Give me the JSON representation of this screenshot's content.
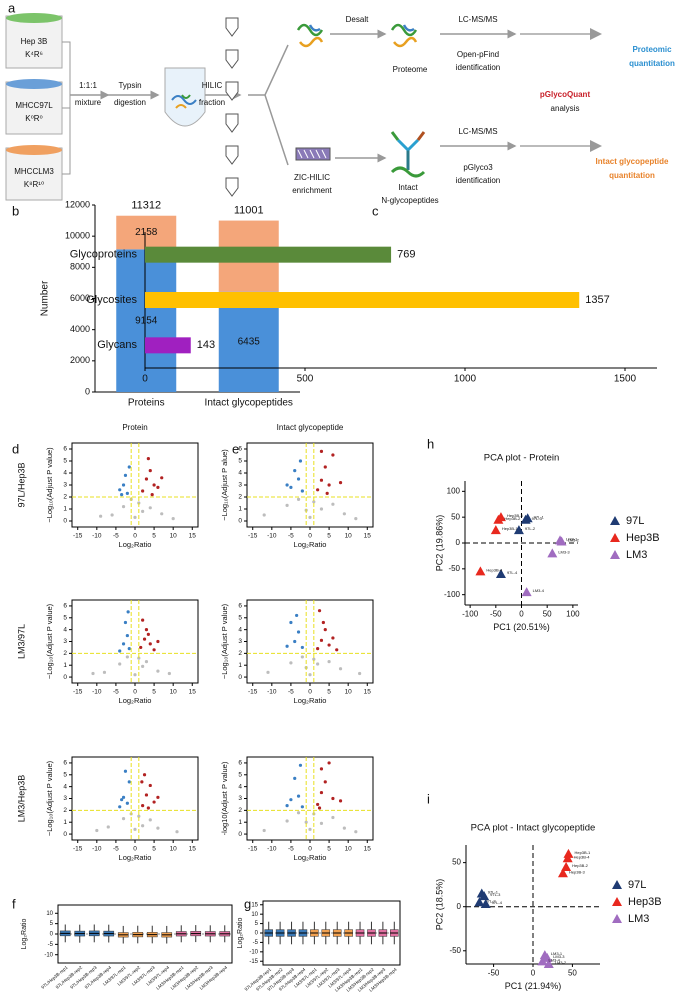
{
  "workflow": {
    "panel": "a",
    "samples": [
      {
        "name": "Hep 3B",
        "label": "K⁴R⁶"
      },
      {
        "name": "MHCC97L",
        "label": "K⁰R⁰"
      },
      {
        "name": "MHCCLM3",
        "label": "K⁸R¹⁰"
      }
    ],
    "steps": {
      "mix1": "1:1:1",
      "mix2": "mixture",
      "digest1": "Typsin",
      "digest2": "digestion",
      "hilic1": "HILIC",
      "hilic2": "fraction",
      "desalt": "Desalt",
      "proteome": "Proteome",
      "lcms1": "LC-MS/MS",
      "openpfind1": "Open-pFind",
      "openpfind2": "identification",
      "proteomic1": "Proteomic",
      "proteomic2": "quantitation",
      "pglycoquant": "pGlycoQuant",
      "analysis": "analysis",
      "zic1": "ZIC-HILIC",
      "zic2": "enrichment",
      "intact1": "Intact",
      "intact2": "N-glycopeptides",
      "lcms2": "LC-MS/MS",
      "pglyco3_1": "pGlyco3",
      "pglyco3_2": "identification",
      "igq1": "Intact glycopeptide",
      "igq2": "quantitation"
    }
  },
  "chart_data": [
    {
      "type": "stacked_bar",
      "panel": "b",
      "ylabel": "Number",
      "categories": [
        "Proteins",
        "Intact glycopeptides"
      ],
      "series": [
        {
          "color": "#4a90d9",
          "values": [
            9154,
            6435
          ]
        },
        {
          "color": "#f4a67a",
          "values": [
            2158,
            4566
          ]
        }
      ],
      "total_labels": [
        11312,
        11001
      ],
      "ylim": [
        0,
        12000
      ],
      "yticks": [
        0,
        2000,
        4000,
        6000,
        8000,
        10000,
        12000
      ]
    },
    {
      "type": "hbar",
      "panel": "c",
      "categories": [
        "Glycoproteins",
        "Glycosites",
        "Glycans"
      ],
      "values": [
        769,
        1357,
        143
      ],
      "colors": [
        "#5a8a3a",
        "#ffc000",
        "#a020c0"
      ],
      "xlim": [
        0,
        1600
      ],
      "xticks": [
        0,
        500,
        1000,
        1500
      ]
    },
    {
      "type": "scatter",
      "panel": "d",
      "title": "Protein",
      "row_label": "97L/Hep3B",
      "ylabel": "−Log₁₀(Adjust P value)",
      "xlabel": "Log₂Ratio",
      "frame": true,
      "thresholds": {
        "x": [
          -1,
          1
        ],
        "y": 2
      },
      "xlim": [
        -16.5,
        16.5
      ],
      "ylim": [
        -0.5,
        6.5
      ],
      "xticks": [
        -15,
        -10,
        -5,
        0,
        5,
        10,
        15
      ],
      "yticks": [
        0,
        1,
        2,
        3,
        4,
        5,
        6
      ],
      "series": [
        {
          "color": "#bdbdbd",
          "x": [
            -6,
            -3,
            -1,
            0,
            1,
            2,
            4,
            7,
            -9,
            10
          ],
          "y": [
            0.5,
            1.2,
            1.8,
            0.3,
            1.5,
            0.8,
            1.1,
            0.6,
            0.4,
            0.2
          ]
        },
        {
          "color": "#3a7fc4",
          "x": [
            -2,
            -3,
            -1.5,
            -4,
            -2.5,
            -3.5
          ],
          "y": [
            2.3,
            3,
            4.5,
            2.6,
            3.8,
            2.2
          ]
        },
        {
          "color": "#b22222",
          "x": [
            2,
            3,
            4,
            5,
            6,
            3.5,
            7,
            4.5
          ],
          "y": [
            2.5,
            3.5,
            4.2,
            3,
            2.8,
            5.2,
            3.6,
            2.2
          ]
        }
      ]
    },
    {
      "type": "scatter",
      "row_label": "LM3/97L",
      "ylabel": "−Log₁₀(Adjust P value)",
      "xlabel": "Log₂Ratio",
      "frame": true,
      "thresholds": {
        "x": [
          -1,
          1
        ],
        "y": 2
      },
      "xlim": [
        -16.5,
        16.5
      ],
      "ylim": [
        -0.5,
        6.5
      ],
      "xticks": [
        -15,
        -10,
        -5,
        0,
        5,
        10,
        15
      ],
      "yticks": [
        0,
        1,
        2,
        3,
        4,
        5,
        6
      ],
      "series": [
        {
          "color": "#bdbdbd",
          "x": [
            -8,
            -4,
            -2,
            0,
            1,
            2,
            3,
            6,
            -11,
            9
          ],
          "y": [
            0.4,
            1.1,
            1.7,
            0.2,
            1.6,
            0.9,
            1.3,
            0.5,
            0.3,
            0.3
          ]
        },
        {
          "color": "#3a7fc4",
          "x": [
            -1.5,
            -2,
            -3,
            -4,
            -2.5,
            -1.8
          ],
          "y": [
            2.4,
            3.5,
            2.8,
            2.2,
            4.6,
            5.5
          ]
        },
        {
          "color": "#b22222",
          "x": [
            1.5,
            2.5,
            3,
            4,
            5,
            2,
            6,
            3.5
          ],
          "y": [
            2.5,
            3.2,
            4,
            2.8,
            2.3,
            4.8,
            3,
            3.6
          ]
        }
      ]
    },
    {
      "type": "scatter",
      "row_label": "LM3/Hep3B",
      "ylabel": "−Log₁₀(Adjust P value)",
      "xlabel": "Log₂Ratio",
      "frame": true,
      "thresholds": {
        "x": [
          -1,
          1
        ],
        "y": 2
      },
      "xlim": [
        -16.5,
        16.5
      ],
      "ylim": [
        -0.5,
        6.5
      ],
      "xticks": [
        -15,
        -10,
        -5,
        0,
        5,
        10,
        15
      ],
      "yticks": [
        0,
        1,
        2,
        3,
        4,
        5,
        6
      ],
      "series": [
        {
          "color": "#bdbdbd",
          "x": [
            -7,
            -3,
            -1,
            0,
            1,
            2,
            4,
            6,
            -10,
            11
          ],
          "y": [
            0.6,
            1.3,
            1.7,
            0.4,
            1.5,
            0.7,
            1.2,
            0.5,
            0.3,
            0.2
          ]
        },
        {
          "color": "#3a7fc4",
          "x": [
            -2,
            -3,
            -1.5,
            -2.5,
            -4,
            -3.5
          ],
          "y": [
            2.6,
            3.1,
            4.4,
            5.3,
            2.3,
            2.9
          ]
        },
        {
          "color": "#b22222",
          "x": [
            2,
            3,
            4,
            2.5,
            5,
            3.5,
            6,
            1.8
          ],
          "y": [
            2.4,
            3.3,
            4.1,
            5,
            2.7,
            2.2,
            3.1,
            4.4
          ]
        }
      ]
    },
    {
      "type": "scatter",
      "panel": "e",
      "title": "Intact glycopeptide",
      "ylabel": "−Log₁₀(Adjust P alue)",
      "xlabel": "Log₂Ratio",
      "frame": true,
      "thresholds": {
        "x": [
          -1,
          1
        ],
        "y": 2
      },
      "xlim": [
        -16.5,
        16.5
      ],
      "ylim": [
        -0.5,
        6.5
      ],
      "xticks": [
        -15,
        -10,
        -5,
        0,
        5,
        10,
        15
      ],
      "yticks": [
        0,
        1,
        2,
        3,
        4,
        5,
        6
      ],
      "series": [
        {
          "color": "#bdbdbd",
          "x": [
            -12,
            -6,
            -3,
            -1,
            0,
            1,
            3,
            6,
            9,
            12
          ],
          "y": [
            0.5,
            1.3,
            1.8,
            0.9,
            0.3,
            1.6,
            1,
            1.4,
            0.6,
            0.2
          ]
        },
        {
          "color": "#3a7fc4",
          "x": [
            -2,
            -3,
            -4,
            -5,
            -2.5,
            -6
          ],
          "y": [
            2.5,
            3.5,
            4.2,
            2.8,
            5,
            3
          ]
        },
        {
          "color": "#b22222",
          "x": [
            2,
            3,
            4,
            5,
            6,
            8,
            3,
            4.5
          ],
          "y": [
            2.6,
            3.4,
            4.5,
            3,
            5.5,
            3.2,
            5.8,
            2.3
          ]
        }
      ]
    },
    {
      "type": "scatter",
      "ylabel": "−Log₁₀(Adjust P value)",
      "xlabel": "Log₂Ratio",
      "frame": true,
      "thresholds": {
        "x": [
          -1,
          1
        ],
        "y": 2
      },
      "xlim": [
        -16.5,
        16.5
      ],
      "ylim": [
        -0.5,
        6.5
      ],
      "xticks": [
        -15,
        -10,
        -5,
        0,
        5,
        10,
        15
      ],
      "yticks": [
        0,
        1,
        2,
        3,
        4,
        5,
        6
      ],
      "series": [
        {
          "color": "#bdbdbd",
          "x": [
            -11,
            -5,
            -2,
            -1,
            0,
            1,
            2,
            5,
            8,
            13
          ],
          "y": [
            0.4,
            1.2,
            1.7,
            0.8,
            0.2,
            1.5,
            1.1,
            1.3,
            0.7,
            0.3
          ]
        },
        {
          "color": "#3a7fc4",
          "x": [
            -2,
            -3,
            -4,
            -5,
            -6,
            -3.5
          ],
          "y": [
            2.5,
            3.8,
            3,
            4.6,
            2.6,
            5.2
          ]
        },
        {
          "color": "#b22222",
          "x": [
            2,
            3,
            4,
            5,
            2.5,
            6,
            3.5,
            7
          ],
          "y": [
            2.4,
            3.1,
            4,
            2.7,
            5.6,
            3.3,
            4.6,
            2.3
          ]
        }
      ]
    },
    {
      "type": "scatter",
      "ylabel": "-log10(Adjust P value)",
      "xlabel": "Log₂Ratio",
      "frame": true,
      "thresholds": {
        "x": [
          -1,
          1
        ],
        "y": 2
      },
      "xlim": [
        -16.5,
        16.5
      ],
      "ylim": [
        -0.5,
        6.5
      ],
      "xticks": [
        -15,
        -10,
        -5,
        0,
        5,
        10,
        15
      ],
      "yticks": [
        0,
        1,
        2,
        3,
        4,
        5,
        6
      ],
      "series": [
        {
          "color": "#bdbdbd",
          "x": [
            -12,
            -6,
            -3,
            -1,
            0,
            1,
            3,
            6,
            9,
            12
          ],
          "y": [
            0.3,
            1.1,
            1.8,
            1,
            0.4,
            1.7,
            0.9,
            1.4,
            0.5,
            0.2
          ]
        },
        {
          "color": "#3a7fc4",
          "x": [
            -2,
            -3,
            -4,
            -5,
            -2.5,
            -6
          ],
          "y": [
            2.3,
            3.2,
            4.7,
            2.9,
            5.8,
            2.4
          ]
        },
        {
          "color": "#b22222",
          "x": [
            2,
            3,
            4,
            6,
            3,
            5,
            8,
            2.5
          ],
          "y": [
            2.5,
            3.5,
            4.4,
            3,
            5.5,
            6,
            2.8,
            2.2
          ]
        }
      ]
    },
    {
      "type": "box",
      "panel": "f",
      "ylabel": "Log₂Ratio",
      "ylim": [
        -14,
        14
      ],
      "yticks": [
        -10,
        -5,
        0,
        5,
        10
      ],
      "categories": [
        "97L/Hep3B-rep1",
        "97L/Hep3B-rep2",
        "97L/Hep3B-rep3",
        "97L/Hep3B-rep4",
        "LM3/97L-rep1",
        "LM3/97L-rep2",
        "LM3/97L-rep3",
        "LM3/97L-rep4",
        "LM3/Hep3B-rep1",
        "LM3/Hep3B-rep2",
        "LM3/Hep3B-rep3",
        "LM3/Hep3B-rep4"
      ],
      "colors": [
        "#3a78b5",
        "#3a78b5",
        "#3a78b5",
        "#3a78b5",
        "#f0a050",
        "#f0a050",
        "#f0a050",
        "#f0a050",
        "#e070a0",
        "#e070a0",
        "#e070a0",
        "#e070a0"
      ],
      "whisker_low": [
        -4,
        -4.2,
        -4,
        -4.1,
        -4.6,
        -4.5,
        -4.5,
        -4.6,
        -4,
        -3.9,
        -4,
        -4
      ],
      "q1": [
        -0.9,
        -1,
        -0.9,
        -1,
        -1.5,
        -1.4,
        -1.4,
        -1.5,
        -1,
        -0.9,
        -1,
        -1
      ],
      "median": [
        0.3,
        0.2,
        0.3,
        0.2,
        -0.4,
        -0.3,
        -0.3,
        -0.4,
        0.1,
        0.2,
        0.1,
        0.1
      ],
      "q3": [
        1.5,
        1.4,
        1.5,
        1.4,
        0.7,
        0.8,
        0.8,
        0.7,
        1.2,
        1.3,
        1.2,
        1.2
      ],
      "whisker_high": [
        4.6,
        4.5,
        4.6,
        4.5,
        3.9,
        4,
        4,
        3.9,
        4.2,
        4.3,
        4.2,
        4.2
      ]
    },
    {
      "type": "box",
      "panel": "g",
      "ylabel": "Log₂Ratio",
      "ylim": [
        -17,
        17
      ],
      "yticks": [
        -15,
        -10,
        -5,
        0,
        5,
        10,
        15
      ],
      "categories": [
        "97L/Hep3B-rep1",
        "97L/Hep3B-rep2",
        "97L/Hep3B-rep3",
        "97L/Hep3B-rep4",
        "LM3/97L-rep1",
        "LM3/97L-rep2",
        "LM3/97L-rep3",
        "LM3/97L-rep4",
        "LM3/Hep3B-rep1",
        "LM3/Hep3B-rep2",
        "LM3/Hep3B-rep3",
        "LM3/Hep3B-rep4"
      ],
      "colors": [
        "#3a78b5",
        "#3a78b5",
        "#3a78b5",
        "#3a78b5",
        "#f0a050",
        "#f0a050",
        "#f0a050",
        "#f0a050",
        "#e070a0",
        "#e070a0",
        "#e070a0",
        "#e070a0"
      ],
      "whisker_low": [
        -6,
        -6,
        -6,
        -6,
        -6,
        -6,
        -6,
        -6,
        -6,
        -6,
        -6,
        -6
      ],
      "q1": [
        -1.8,
        -1.8,
        -1.8,
        -1.8,
        -1.8,
        -1.8,
        -1.8,
        -1.8,
        -1.8,
        -1.8,
        -1.8,
        -1.8
      ],
      "median": [
        0,
        0,
        0,
        0,
        0,
        0,
        0,
        0,
        0,
        0,
        0,
        0
      ],
      "q3": [
        1.8,
        1.8,
        1.8,
        1.8,
        1.8,
        1.8,
        1.8,
        1.8,
        1.8,
        1.8,
        1.8,
        1.8
      ],
      "whisker_high": [
        6,
        6,
        6,
        6,
        6,
        6,
        6,
        6,
        6,
        6,
        6,
        6
      ]
    },
    {
      "type": "scatter",
      "panel": "h",
      "title": "PCA plot - Protein",
      "xlabel": "PC1 (20.51%)",
      "ylabel": "PC2 (19.86%)",
      "zero_lines": true,
      "legend": "right",
      "xlim": [
        -110,
        110
      ],
      "ylim": [
        -120,
        120
      ],
      "xticks": [
        -100,
        -50,
        0,
        50,
        100
      ],
      "yticks": [
        -100,
        -50,
        0,
        50,
        100
      ],
      "series": [
        {
          "name": "97L",
          "color": "#1f3b73",
          "x": [
            8,
            12,
            -5,
            -40
          ],
          "y": [
            45,
            48,
            25,
            -60
          ],
          "labels": [
            "97L-3",
            "97L-1",
            "97L-2",
            "97L-4"
          ]
        },
        {
          "name": "Hep3B",
          "color": "#e8281e",
          "x": [
            -40,
            -45,
            -50,
            -80
          ],
          "y": [
            50,
            45,
            25,
            -55
          ],
          "labels": [
            "Hep3B-3",
            "Hep3B-2",
            "Hep3B-1",
            "Hep3B-4"
          ]
        },
        {
          "name": "LM3",
          "color": "#a06cc0",
          "x": [
            75,
            78,
            60,
            10
          ],
          "y": [
            5,
            3,
            -20,
            -95
          ],
          "labels": [
            "LM3-1",
            "LM3-2",
            "LM3-3",
            "LM3-4"
          ]
        }
      ]
    },
    {
      "type": "scatter",
      "panel": "i",
      "title": "PCA plot - Intact glycopeptide",
      "xlabel": "PC1 (21.94%)",
      "ylabel": "PC2 (18.5%)",
      "zero_lines": true,
      "legend": "right",
      "xlim": [
        -85,
        85
      ],
      "ylim": [
        -65,
        70
      ],
      "xticks": [
        -50,
        0,
        50
      ],
      "yticks": [
        -50,
        0,
        50
      ],
      "series": [
        {
          "name": "97L",
          "color": "#1f3b73",
          "x": [
            -65,
            -62,
            -68,
            -60
          ],
          "y": [
            15,
            12,
            5,
            3
          ],
          "labels": [
            "97L-1",
            "97L-3",
            "97L-2",
            "97L-4"
          ]
        },
        {
          "name": "Hep3B",
          "color": "#e8281e",
          "x": [
            45,
            42,
            38,
            44
          ],
          "y": [
            60,
            45,
            38,
            55
          ],
          "labels": [
            "Hep3B-1",
            "Hep3B-2",
            "Hep3B-3",
            "Hep3B-4"
          ]
        },
        {
          "name": "LM3",
          "color": "#a06cc0",
          "x": [
            15,
            18,
            20,
            12
          ],
          "y": [
            -55,
            -58,
            -65,
            -62
          ],
          "labels": [
            "LM3-1",
            "LM3-3",
            "LM3-2",
            "LM3-4"
          ]
        }
      ]
    }
  ]
}
